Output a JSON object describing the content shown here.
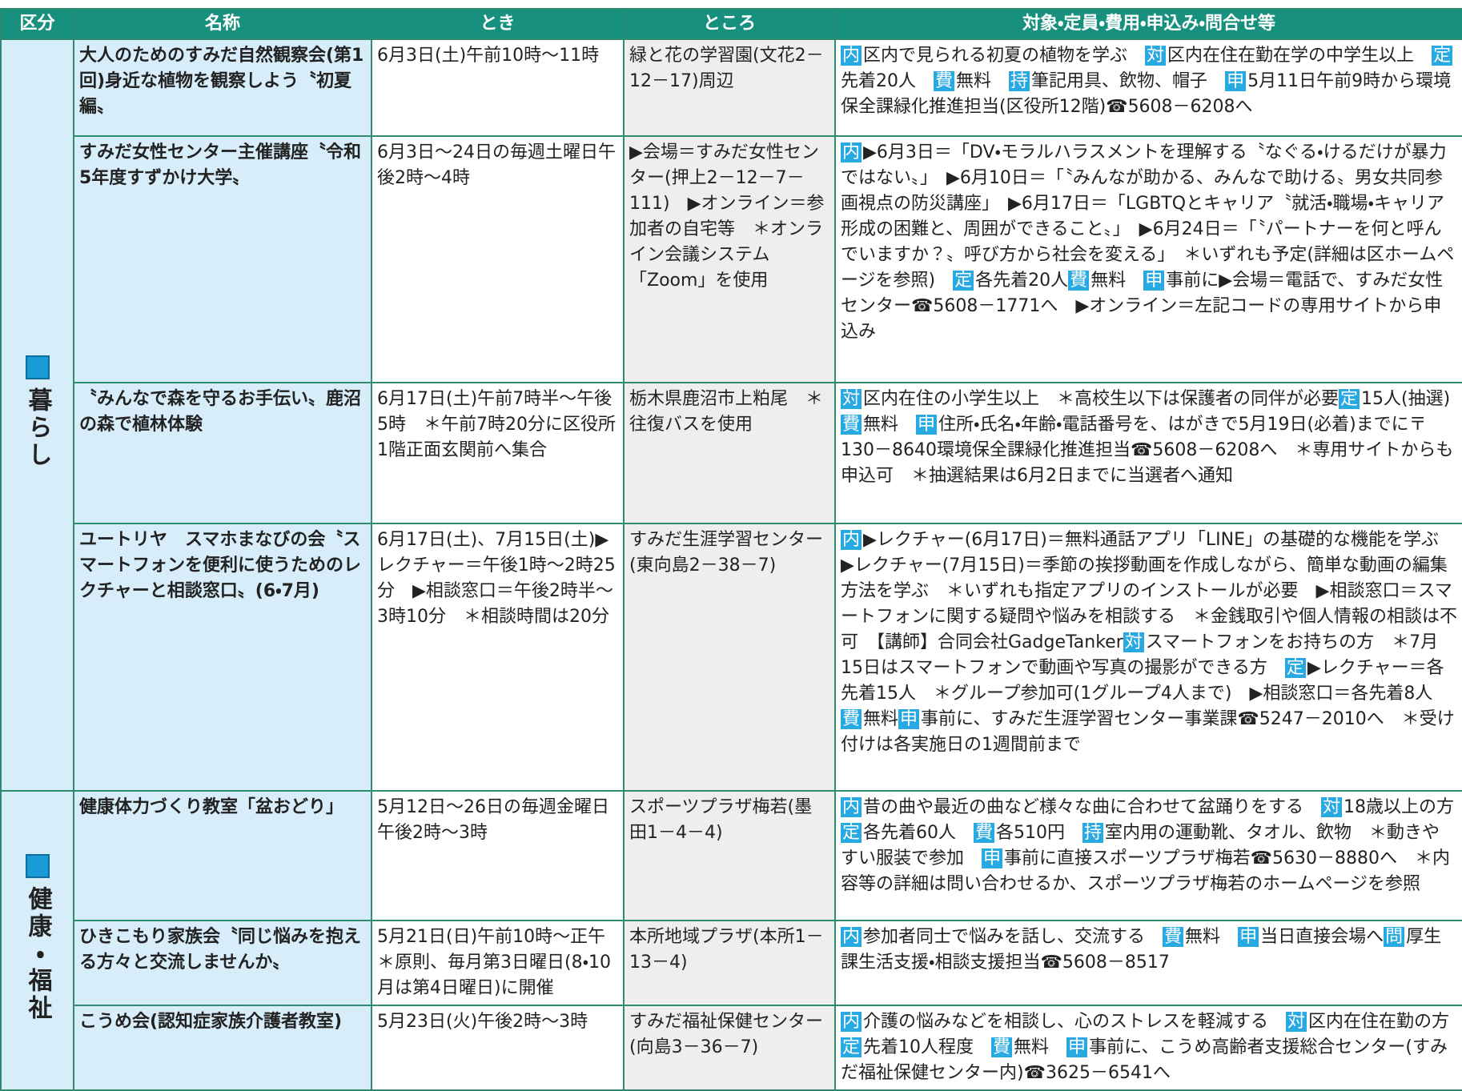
{
  "header": [
    "区分",
    "名称",
    "とき",
    "ところ",
    "対象・定員・費用・申込み・問合せ等"
  ],
  "sections": [
    {
      "category": "暮らし",
      "rows": [
        {
          "name": "大人のためのすみだ自然観察会(第1回)身近な植物を観察しよう〝初夏編〟",
          "when": "6月3日(土)午前10時～11時",
          "where": "緑と花の学習園(文花2－12－17)周辺",
          "details": [
            {
              "label": "内",
              "text": "区内で見られる初夏の植物を学ぶ　"
            },
            {
              "label": "対",
              "text": "区内在住在勤在学の中学生以上　"
            },
            {
              "label": "定",
              "text": "先着20人　"
            },
            {
              "label": "費",
              "text": "無料　"
            },
            {
              "label": "持",
              "text": "筆記用具、飲物、帽子　"
            },
            {
              "label": "申",
              "text": "5月11日午前9時から環境保全課緑化推進担当(区役所12階)☎5608－6208へ"
            }
          ]
        },
        {
          "name": "すみだ女性センター主催講座〝令和5年度すずかけ大学〟",
          "when": "6月3日～24日の毎週土曜日午後2時～4時",
          "where": "▶会場＝すみだ女性センター(押上2－12－7－111)　▶オンライン＝参加者の自宅等　＊オンライン会議システム「Zoom」を使用",
          "details": [
            {
              "label": "内",
              "text": "▶6月3日＝「DV・モラルハラスメントを理解する〝なぐる・けるだけが暴力ではない〟」　▶6月10日＝「〝みんなが助かる、みんなで助ける〟男女共同参画視点の防災講座」　▶6月17日＝「LGBTQとキャリア〝就活・職場・キャリア形成の困難と、周囲ができること〟」　▶6月24日＝「〝パートナーを何と呼んでいますか？〟呼び方から社会を変える」　＊いずれも予定(詳細は区ホームページを参照)　"
            },
            {
              "label": "定",
              "text": "各先着20人"
            },
            {
              "label": "費",
              "text": "無料　"
            },
            {
              "label": "申",
              "text": "事前に▶会場＝電話で、すみだ女性センター☎5608－1771へ　▶オンライン＝左記コードの専用サイトから申込み"
            }
          ]
        },
        {
          "name": "〝みんなで森を守るお手伝い〟鹿沼の森で植林体験",
          "when": "6月17日(土)午前7時半～午後5時　＊午前7時20分に区役所1階正面玄関前へ集合",
          "where": "栃木県鹿沼市上粕尾　＊往復バスを使用",
          "details": [
            {
              "label": "対",
              "text": "区内在住の小学生以上　＊高校生以下は保護者の同伴が必要"
            },
            {
              "label": "定",
              "text": "15人(抽選)　"
            },
            {
              "label": "費",
              "text": "無料　"
            },
            {
              "label": "申",
              "text": "住所・氏名・年齢・電話番号を、はがきで5月19日(必着)までに〒130－8640環境保全課緑化推進担当☎5608－6208へ　＊専用サイトからも申込可　＊抽選結果は6月2日までに当選者へ通知"
            }
          ]
        },
        {
          "name": "ユートリヤ　スマホまなびの会〝スマートフォンを便利に使うためのレクチャーと相談窓口〟(6・7月)",
          "when": "6月17日(土)、7月15日(土)▶レクチャー＝午後1時～2時25分　▶相談窓口＝午後2時半～3時10分　＊相談時間は20分",
          "where": "すみだ生涯学習センター(東向島2－38－7)",
          "details": [
            {
              "label": "内",
              "text": "▶レクチャー(6月17日)＝無料通話アプリ「LINE」の基礎的な機能を学ぶ　▶レクチャー(7月15日)＝季節の挨拶動画を作成しながら、簡単な動画の編集方法を学ぶ　＊いずれも指定アプリのインストールが必要　▶相談窓口＝スマートフォンに関する疑問や悩みを相談する　＊金銭取引や個人情報の相談は不可　【講師】合同会社GadgeTanker"
            },
            {
              "label": "対",
              "text": "スマートフォンをお持ちの方　＊7月15日はスマートフォンで動画や写真の撮影ができる方　"
            },
            {
              "label": "定",
              "text": "▶レクチャー＝各先着15人　＊グループ参加可(1グループ4人まで)　▶相談窓口＝各先着8人　"
            },
            {
              "label": "費",
              "text": "無料"
            },
            {
              "label": "申",
              "text": "事前に、すみだ生涯学習センター事業課☎5247－2010へ　＊受け付けは各実施日の1週間前まで"
            }
          ]
        }
      ]
    },
    {
      "category": "健康・福祉",
      "rows": [
        {
          "name": "健康体力づくり教室「盆おどり」",
          "when": "5月12日～26日の毎週金曜日午後2時～3時",
          "where": "スポーツプラザ梅若(墨田1－4－4)",
          "details": [
            {
              "label": "内",
              "text": "昔の曲や最近の曲など様々な曲に合わせて盆踊りをする　"
            },
            {
              "label": "対",
              "text": "18歳以上の方　"
            },
            {
              "label": "定",
              "text": "各先着60人　"
            },
            {
              "label": "費",
              "text": "各510円　"
            },
            {
              "label": "持",
              "text": "室内用の運動靴、タオル、飲物　＊動きやすい服装で参加　"
            },
            {
              "label": "申",
              "text": "事前に直接スポーツプラザ梅若☎5630－8880へ　＊内容等の詳細は問い合わせるか、スポーツプラザ梅若のホームページを参照"
            }
          ]
        },
        {
          "name": "ひきこもり家族会〝同じ悩みを抱える方々と交流しませんか〟",
          "when": "5月21日(日)午前10時～正午　＊原則、毎月第3日曜日(8・10月は第4日曜日)に開催",
          "where": "本所地域プラザ(本所1－13－4)",
          "details": [
            {
              "label": "内",
              "text": "参加者同士で悩みを話し、交流する　"
            },
            {
              "label": "費",
              "text": "無料　"
            },
            {
              "label": "申",
              "text": "当日直接会場へ"
            },
            {
              "label": "問",
              "text": "厚生課生活支援・相談支援担当☎5608－8517"
            }
          ]
        },
        {
          "name": "こうめ会(認知症家族介護者教室)",
          "when": "5月23日(火)午後2時～3時",
          "where": "すみだ福祉保健センター(向島3－36－7)",
          "details": [
            {
              "label": "内",
              "text": "介護の悩みなどを相談し、心のストレスを軽減する　"
            },
            {
              "label": "対",
              "text": "区内在住在勤の方　"
            },
            {
              "label": "定",
              "text": "先着10人程度　"
            },
            {
              "label": "費",
              "text": "無料　"
            },
            {
              "label": "申",
              "text": "事前に、こうめ高齢者支援総合センター(すみだ福祉保健センター内)☎3625－6541へ"
            }
          ]
        }
      ]
    }
  ]
}
